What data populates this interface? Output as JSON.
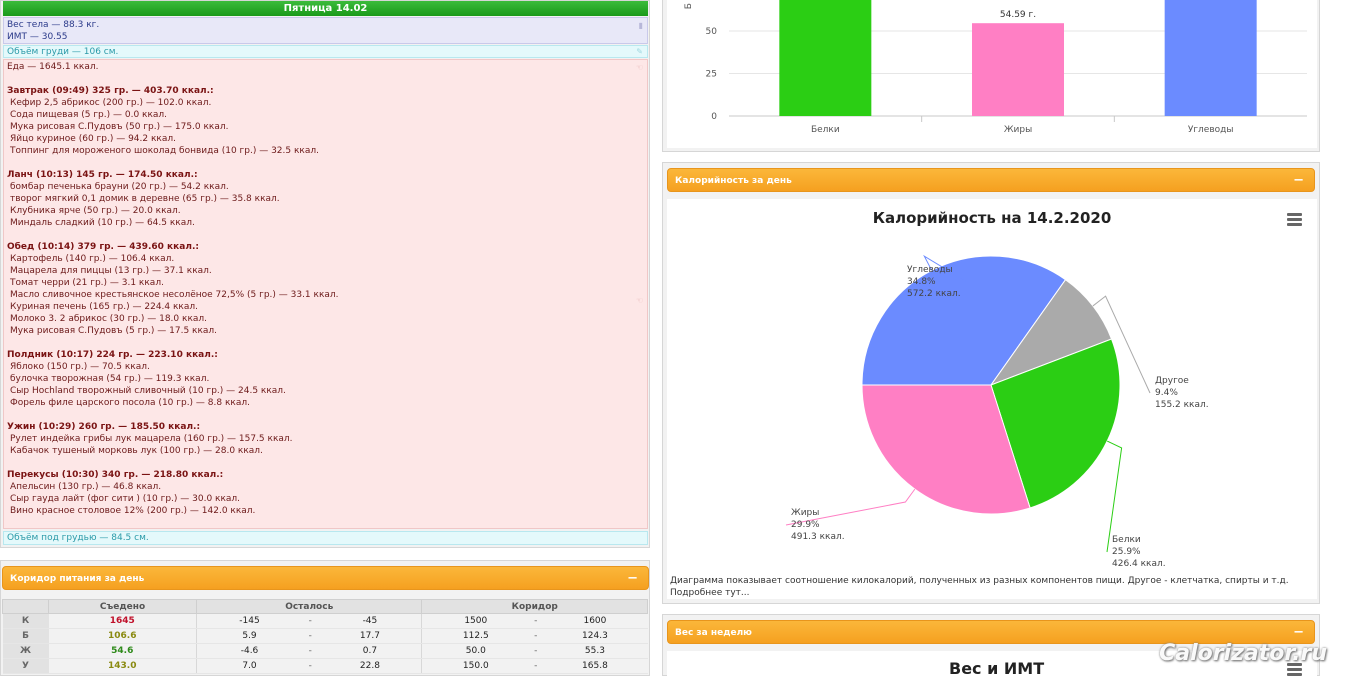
{
  "day": {
    "header": "Пятница 14.02",
    "weight": "Вес тела — 88.3 кг.",
    "bmi": "ИМТ — 30.55",
    "chest_top": "Объём груди — 106 см.",
    "chest_bottom": "Объём под грудью — 84.5 см.",
    "food_total": "Еда — 1645.1 ккал.",
    "meals": [
      {
        "title": "Завтрак (09:49) 325 гр. — 403.70 ккал.:",
        "items": [
          "Кефир 2,5 абрикос (200 гр.) — 102.0 ккал.",
          "Сода пищевая (5 гр.) — 0.0 ккал.",
          "Мука рисовая С.Пудовъ (50 гр.) — 175.0 ккал.",
          "Яйцо куриное (60 гр.) — 94.2 ккал.",
          "Топпинг для мороженого шоколад бонвида (10 гр.) — 32.5 ккал."
        ]
      },
      {
        "title": "Ланч (10:13) 145 гр. — 174.50 ккал.:",
        "items": [
          "бомбар печенька брауни (20 гр.) — 54.2 ккал.",
          "творог мягкий 0,1 домик в деревне (65 гр.) — 35.8 ккал.",
          "Клубника ярче (50 гр.) — 20.0 ккал.",
          "Миндаль сладкий (10 гр.) — 64.5 ккал."
        ]
      },
      {
        "title": "Обед (10:14) 379 гр. — 439.60 ккал.:",
        "items": [
          "Картофель (140 гр.) — 106.4 ккал.",
          "Мацарела для пиццы (13 гр.) — 37.1 ккал.",
          "Томат черри (21 гр.) — 3.1 ккал.",
          "Масло сливочное крестьянское несолёное 72,5% (5 гр.) — 33.1 ккал.",
          "Куриная печень (165 гр.) — 224.4 ккал.",
          "Молоко 3. 2 абрикос (30 гр.) — 18.0 ккал.",
          "Мука рисовая С.Пудовъ (5 гр.) — 17.5 ккал."
        ]
      },
      {
        "title": "Полдник (10:17) 224 гр. — 223.10 ккал.:",
        "items": [
          "Яблоко (150 гр.) — 70.5 ккал.",
          "булочка творожная (54 гр.) — 119.3 ккал.",
          "Сыр Hochland творожный сливочный (10 гр.) — 24.5 ккал.",
          "Форель филе царского посола (10 гр.) — 8.8 ккал."
        ]
      },
      {
        "title": "Ужин (10:29) 260 гр. — 185.50 ккал.:",
        "items": [
          "Рулет индейка грибы лук мацарела (160 гр.) — 157.5 ккал.",
          "Кабачок тушеный морковь лук (100 гр.) — 28.0 ккал."
        ]
      },
      {
        "title": "Перекусы (10:30) 340 гр. — 218.80 ккал.:",
        "items": [
          "Апельсин (130 гр.) — 46.8 ккал.",
          "Сыр гауда лайт (фог сити ) (10 гр.) — 30.0 ккал.",
          "Вино красное столовое 12% (200 гр.) — 142.0 ккал."
        ]
      }
    ]
  },
  "corridor": {
    "title": "Коридор питания за день",
    "collapse": "−",
    "headers": [
      "",
      "Съедено",
      "Осталось",
      "Коридор"
    ],
    "rows": [
      {
        "label": "К",
        "eaten": "1645",
        "eaten_color": "#c0102a",
        "left_min": "-145",
        "left_max": "-45",
        "c_min": "1500",
        "c_max": "1600"
      },
      {
        "label": "Б",
        "eaten": "106.6",
        "eaten_color": "#8a8a10",
        "left_min": "5.9",
        "left_max": "17.7",
        "c_min": "112.5",
        "c_max": "124.3"
      },
      {
        "label": "Ж",
        "eaten": "54.6",
        "eaten_color": "#2e8a1a",
        "left_min": "-4.6",
        "left_max": "0.7",
        "c_min": "50.0",
        "c_max": "55.3"
      },
      {
        "label": "У",
        "eaten": "143.0",
        "eaten_color": "#8a8a10",
        "left_min": "7.0",
        "left_max": "22.8",
        "c_min": "150.0",
        "c_max": "165.8"
      }
    ],
    "dash": "-"
  },
  "pie_section": {
    "title": "Калорийность за день",
    "collapse": "−",
    "note_line1": "Диаграмма показывает соотношение килокалорий, полученных из разных компонентов пищи. Другое - клетчатка, спирты и т.д.",
    "note_line2": "Подробнее тут..."
  },
  "weight_section": {
    "title": "Вес за неделю",
    "collapse": "−",
    "chart_title": "Вес и ИМТ"
  },
  "watermark": "Calorizator.ru",
  "chart_data": [
    {
      "type": "bar",
      "categories": [
        "Белки",
        "Жиры",
        "Углеводы"
      ],
      "values": [
        null,
        54.59,
        null
      ],
      "value_labels": [
        "",
        "54.59 г.",
        ""
      ],
      "colors": [
        "#2bce14",
        "#ff7fc4",
        "#6b8bff"
      ],
      "y_ticks": [
        0,
        25,
        50
      ],
      "ylabel": "Б"
    },
    {
      "type": "pie",
      "title": "Калорийность на 14.2.2020",
      "slices": [
        {
          "name": "Углеводы",
          "percent": 34.8,
          "value": 572.2,
          "pct_label": "34.8%",
          "val_label": "572.2 ккал.",
          "color": "#6b8bff"
        },
        {
          "name": "Другое",
          "percent": 9.4,
          "value": 155.2,
          "pct_label": "9.4%",
          "val_label": "155.2 ккал.",
          "color": "#aaaaaa"
        },
        {
          "name": "Белки",
          "percent": 25.9,
          "value": 426.4,
          "pct_label": "25.9%",
          "val_label": "426.4 ккал.",
          "color": "#2bce14"
        },
        {
          "name": "Жиры",
          "percent": 29.9,
          "value": 491.3,
          "pct_label": "29.9%",
          "val_label": "491.3 ккал.",
          "color": "#ff7fc4"
        }
      ]
    }
  ]
}
